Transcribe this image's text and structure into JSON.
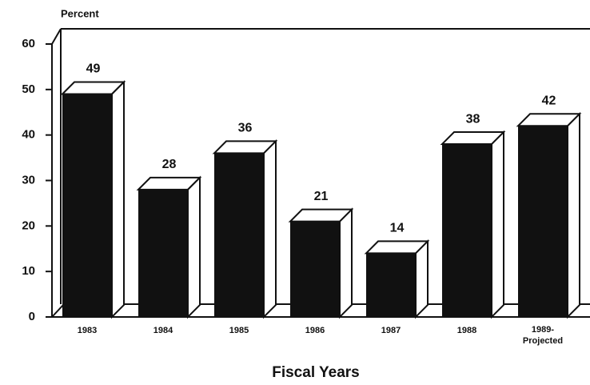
{
  "chart_data": {
    "type": "bar",
    "y_axis_label": "Percent",
    "x_axis_label": "Fiscal Years",
    "categories": [
      "1983",
      "1984",
      "1985",
      "1986",
      "1987",
      "1988",
      "1989-\nProjected"
    ],
    "values": [
      49,
      28,
      36,
      21,
      14,
      38,
      42
    ],
    "color": "#111111",
    "ylim": [
      0,
      60
    ],
    "yticks": [
      0,
      10,
      20,
      30,
      40,
      50,
      60
    ]
  }
}
